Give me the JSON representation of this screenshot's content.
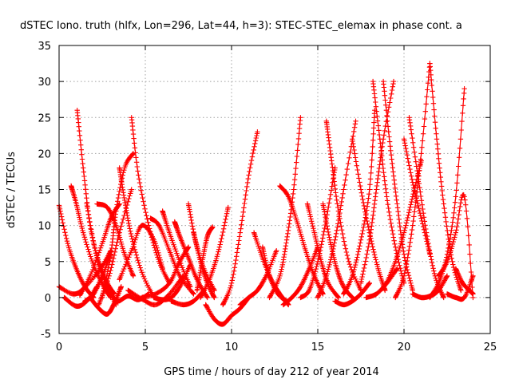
{
  "chart_data": {
    "type": "scatter",
    "title": "dSTEC Iono. truth (hlfx, Lon=296, Lat=44, h=3): STEC-STEC_elemax in phase cont. a",
    "xlabel": "GPS time / hours of day 212 of year 2014",
    "ylabel": "dSTEC  / TECUs",
    "xlim": [
      0,
      25
    ],
    "ylim": [
      -5,
      35
    ],
    "xticks": [
      0,
      5,
      10,
      15,
      20,
      25
    ],
    "yticks": [
      -5,
      0,
      5,
      10,
      15,
      20,
      25,
      30,
      35
    ],
    "grid": true,
    "marker": "plus",
    "color": "#ff0000",
    "series": [
      {
        "x": [
          0.0,
          0.5,
          1.0,
          1.5,
          2.0
        ],
        "y": [
          12.8,
          7.5,
          4.0,
          1.5,
          0.0
        ]
      },
      {
        "x": [
          0.0,
          0.8,
          1.4,
          2.4,
          3.0
        ],
        "y": [
          1.5,
          0.5,
          1.2,
          4.0,
          6.5
        ]
      },
      {
        "x": [
          0.3,
          1.0,
          1.6,
          2.2
        ],
        "y": [
          0.0,
          -1.2,
          -0.5,
          1.5
        ]
      },
      {
        "x": [
          0.7,
          1.0,
          1.4,
          2.0,
          2.6,
          3.0
        ],
        "y": [
          15.5,
          13.0,
          9.0,
          4.5,
          1.5,
          0.0
        ]
      },
      {
        "x": [
          1.05,
          1.4,
          1.8,
          2.3,
          2.8,
          3.2
        ],
        "y": [
          26.0,
          18.0,
          10.0,
          5.0,
          2.0,
          0.5
        ]
      },
      {
        "x": [
          1.2,
          1.8,
          2.5,
          3.0,
          3.5
        ],
        "y": [
          0.3,
          3.0,
          7.5,
          11.0,
          13.0
        ]
      },
      {
        "x": [
          1.5,
          2.0,
          2.5,
          3.0
        ],
        "y": [
          -0.5,
          0.5,
          3.0,
          6.0
        ]
      },
      {
        "x": [
          1.6,
          2.1,
          2.6,
          3.3
        ],
        "y": [
          13.0,
          6.5,
          2.5,
          -1.0
        ]
      },
      {
        "x": [
          1.8,
          2.3,
          2.8,
          3.2,
          3.6
        ],
        "y": [
          0.0,
          -1.5,
          -2.3,
          -0.8,
          1.5
        ]
      },
      {
        "x": [
          2.2,
          2.8,
          3.3,
          3.8,
          4.3
        ],
        "y": [
          13.0,
          12.5,
          10.0,
          6.0,
          3.0
        ]
      },
      {
        "x": [
          2.5,
          3.0,
          3.3,
          3.8,
          4.3
        ],
        "y": [
          0.0,
          6.0,
          12.0,
          18.0,
          20.0
        ]
      },
      {
        "x": [
          2.3,
          2.9,
          3.5,
          4.2
        ],
        "y": [
          -1.0,
          3.0,
          9.0,
          15.0
        ]
      },
      {
        "x": [
          3.0,
          3.4,
          4.0,
          4.6,
          5.2
        ],
        "y": [
          0.5,
          -0.5,
          0.2,
          -0.3,
          0.5
        ]
      },
      {
        "x": [
          3.5,
          3.8,
          4.2,
          4.8,
          5.5
        ],
        "y": [
          18.0,
          13.5,
          8.5,
          3.5,
          0.0
        ]
      },
      {
        "x": [
          4.2,
          4.6,
          5.2,
          5.8,
          6.4
        ],
        "y": [
          25.0,
          17.0,
          10.0,
          5.0,
          2.0
        ]
      },
      {
        "x": [
          3.5,
          4.2,
          4.8,
          5.5,
          6.0
        ],
        "y": [
          2.5,
          6.5,
          10.0,
          8.0,
          4.0
        ]
      },
      {
        "x": [
          4.0,
          4.8,
          5.6,
          6.4,
          7.2
        ],
        "y": [
          1.0,
          -0.2,
          -1.0,
          0.5,
          3.0
        ]
      },
      {
        "x": [
          4.8,
          5.6,
          6.4,
          7.0,
          7.5
        ],
        "y": [
          0.0,
          0.5,
          2.0,
          5.0,
          7.0
        ]
      },
      {
        "x": [
          5.3,
          5.8,
          6.4,
          7.0,
          7.8
        ],
        "y": [
          11.0,
          10.0,
          6.5,
          3.0,
          0.5
        ]
      },
      {
        "x": [
          5.5,
          6.0,
          6.5,
          7.0,
          7.6
        ],
        "y": [
          0.0,
          -0.3,
          0.0,
          1.5,
          4.5
        ]
      },
      {
        "x": [
          6.0,
          6.4,
          7.0,
          7.6
        ],
        "y": [
          12.0,
          9.0,
          5.0,
          1.5
        ]
      },
      {
        "x": [
          6.7,
          7.0,
          7.5,
          8.0,
          8.6
        ],
        "y": [
          10.5,
          8.5,
          5.5,
          2.5,
          0.0
        ]
      },
      {
        "x": [
          7.5,
          7.9,
          8.4,
          9.0
        ],
        "y": [
          13.0,
          8.0,
          4.0,
          1.0
        ]
      },
      {
        "x": [
          6.5,
          7.2,
          7.8,
          8.4
        ],
        "y": [
          -0.5,
          -1.0,
          -0.5,
          1.0
        ]
      },
      {
        "x": [
          7.8,
          8.2,
          8.6,
          9.0
        ],
        "y": [
          9.0,
          5.0,
          2.0,
          0.0
        ]
      },
      {
        "x": [
          8.0,
          8.3,
          8.6,
          8.9
        ],
        "y": [
          1.0,
          5.0,
          8.5,
          9.8
        ]
      },
      {
        "x": [
          8.5,
          9.0,
          9.5,
          10.0,
          10.5,
          11.0
        ],
        "y": [
          -1.0,
          -3.0,
          -3.7,
          -2.5,
          -1.5,
          0.0
        ]
      },
      {
        "x": [
          8.2,
          8.8,
          9.3,
          9.8
        ],
        "y": [
          0.0,
          3.0,
          7.0,
          12.5
        ]
      },
      {
        "x": [
          9.5,
          10.0,
          10.5,
          11.0,
          11.5
        ],
        "y": [
          -1.0,
          2.0,
          9.0,
          17.0,
          23.0
        ]
      },
      {
        "x": [
          10.5,
          11.0,
          11.5,
          12.0,
          12.6
        ],
        "y": [
          -1.0,
          0.0,
          1.0,
          3.0,
          6.5
        ]
      },
      {
        "x": [
          11.3,
          11.8,
          12.3,
          12.8,
          13.3
        ],
        "y": [
          9.0,
          5.5,
          2.5,
          0.5,
          -1.0
        ]
      },
      {
        "x": [
          11.8,
          12.2,
          12.7,
          13.2
        ],
        "y": [
          7.0,
          3.0,
          0.5,
          -0.5
        ]
      },
      {
        "x": [
          12.2,
          12.8,
          13.2,
          13.6,
          14.0
        ],
        "y": [
          0.0,
          3.0,
          8.0,
          15.0,
          25.0
        ]
      },
      {
        "x": [
          12.8,
          13.3,
          13.8,
          14.3,
          14.8,
          15.3
        ],
        "y": [
          15.5,
          14.0,
          10.5,
          6.5,
          3.0,
          0.5
        ]
      },
      {
        "x": [
          13.0,
          13.5,
          14.0,
          14.5,
          15.0
        ],
        "y": [
          -1.0,
          0.0,
          1.5,
          4.0,
          7.0
        ]
      },
      {
        "x": [
          14.0,
          14.5,
          15.0,
          15.5,
          16.0
        ],
        "y": [
          0.0,
          1.0,
          5.0,
          11.0,
          18.0
        ]
      },
      {
        "x": [
          14.4,
          14.8,
          15.2,
          15.6,
          16.2
        ],
        "y": [
          13.0,
          9.0,
          5.0,
          2.0,
          0.0
        ]
      },
      {
        "x": [
          15.3,
          15.7,
          16.1,
          16.5,
          17.0
        ],
        "y": [
          13.0,
          8.0,
          4.0,
          1.5,
          0.0
        ]
      },
      {
        "x": [
          15.0,
          15.5,
          16.0,
          16.5,
          17.2
        ],
        "y": [
          0.0,
          3.0,
          8.0,
          15.0,
          24.5
        ]
      },
      {
        "x": [
          15.5,
          15.8,
          16.2,
          16.8,
          17.5
        ],
        "y": [
          24.5,
          19.0,
          12.0,
          5.0,
          1.0
        ]
      },
      {
        "x": [
          16.0,
          16.5,
          17.0,
          17.5,
          18.0
        ],
        "y": [
          -0.5,
          -1.0,
          -0.5,
          0.5,
          2.0
        ]
      },
      {
        "x": [
          16.5,
          17.0,
          17.5,
          18.0,
          18.3
        ],
        "y": [
          0.5,
          3.0,
          8.0,
          15.0,
          26.0
        ]
      },
      {
        "x": [
          17.0,
          17.5,
          18.0,
          18.5,
          18.9
        ],
        "y": [
          22.0,
          15.0,
          9.0,
          4.0,
          1.0
        ]
      },
      {
        "x": [
          17.5,
          18.0,
          18.4,
          18.8,
          19.4
        ],
        "y": [
          2.0,
          8.0,
          15.0,
          22.0,
          30.0
        ]
      },
      {
        "x": [
          18.2,
          18.6,
          19.0,
          19.5,
          20.0
        ],
        "y": [
          30.0,
          22.0,
          14.0,
          7.0,
          2.0
        ]
      },
      {
        "x": [
          18.8,
          19.2,
          19.6,
          20.0,
          20.5
        ],
        "y": [
          30.0,
          21.0,
          13.0,
          6.0,
          1.0
        ]
      },
      {
        "x": [
          17.8,
          18.4,
          19.0,
          19.6
        ],
        "y": [
          0.0,
          0.5,
          2.0,
          4.0
        ]
      },
      {
        "x": [
          19.5,
          20.0,
          20.5,
          21.0,
          21.5
        ],
        "y": [
          0.0,
          3.0,
          10.0,
          20.0,
          32.5
        ]
      },
      {
        "x": [
          20.3,
          20.8,
          21.3,
          21.8,
          22.3
        ],
        "y": [
          25.0,
          17.0,
          9.0,
          3.0,
          0.0
        ]
      },
      {
        "x": [
          21.5,
          21.9,
          22.3,
          22.8,
          23.3
        ],
        "y": [
          32.5,
          22.0,
          13.0,
          5.0,
          1.0
        ]
      },
      {
        "x": [
          20.5,
          21.0,
          21.5,
          22.0,
          22.5
        ],
        "y": [
          0.5,
          0.0,
          0.2,
          1.0,
          3.0
        ]
      },
      {
        "x": [
          21.5,
          22.0,
          22.5,
          23.0,
          23.5
        ],
        "y": [
          0.0,
          2.0,
          6.0,
          14.0,
          29.0
        ]
      },
      {
        "x": [
          22.0,
          22.5,
          23.0,
          23.5,
          24.0
        ],
        "y": [
          3.0,
          5.0,
          9.0,
          14.0,
          0.0
        ]
      },
      {
        "x": [
          22.5,
          23.0,
          23.5,
          24.0
        ],
        "y": [
          0.5,
          0.0,
          0.0,
          3.0
        ]
      },
      {
        "x": [
          23.0,
          23.4,
          23.8,
          24.0
        ],
        "y": [
          4.0,
          2.0,
          1.0,
          0.5
        ]
      },
      {
        "x": [
          19.0,
          19.5,
          20.0,
          20.5,
          21.0
        ],
        "y": [
          2.0,
          5.0,
          9.0,
          14.0,
          19.0
        ]
      },
      {
        "x": [
          20.0,
          20.5,
          21.0,
          21.5
        ],
        "y": [
          22.0,
          16.0,
          11.0,
          6.0
        ]
      }
    ]
  }
}
